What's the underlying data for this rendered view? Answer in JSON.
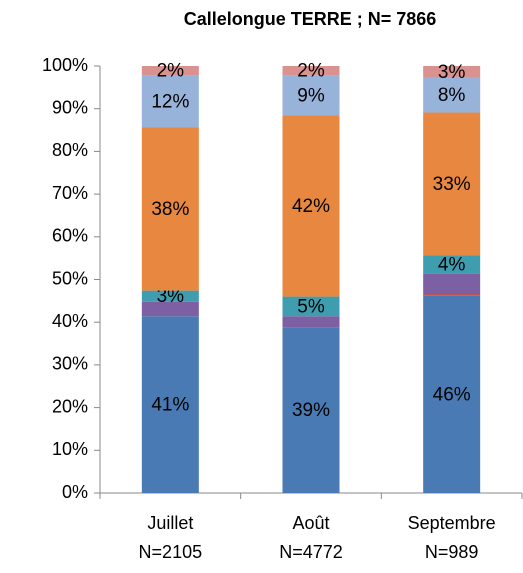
{
  "chart_data": {
    "type": "stacked_bar",
    "title": "Callelongue TERRE ; N= 7866",
    "categories": [
      "Juillet",
      "Août",
      "Septembre"
    ],
    "category_counts": [
      "N=2105",
      "N=4772",
      "N=989"
    ],
    "ylim": [
      0,
      100
    ],
    "yticks": [
      {
        "value": 0,
        "label": "0%"
      },
      {
        "value": 10,
        "label": "10%"
      },
      {
        "value": 20,
        "label": "20%"
      },
      {
        "value": 30,
        "label": "30%"
      },
      {
        "value": 40,
        "label": "40%"
      },
      {
        "value": 50,
        "label": "50%"
      },
      {
        "value": 60,
        "label": "60%"
      },
      {
        "value": 70,
        "label": "70%"
      },
      {
        "value": 80,
        "label": "80%"
      },
      {
        "value": 90,
        "label": "90%"
      },
      {
        "value": 100,
        "label": "100%"
      }
    ],
    "series": [
      {
        "color": "#4a7ab4",
        "values": [
          41.4,
          38.8,
          46.2
        ],
        "value_labels": [
          "41%",
          "39%",
          "46%"
        ]
      },
      {
        "color": "#c0504d",
        "values": [
          0,
          0,
          0.4
        ],
        "value_labels": [
          null,
          null,
          null
        ]
      },
      {
        "color": "#7d5fa3",
        "values": [
          3.4,
          2.6,
          4.7
        ],
        "value_labels": [
          null,
          null,
          null
        ]
      },
      {
        "color": "#3f9db0",
        "values": [
          2.6,
          4.6,
          4.4
        ],
        "value_labels": [
          "3%",
          "5%",
          "4%"
        ]
      },
      {
        "color": "#e8873f",
        "values": [
          38.2,
          42.4,
          33.4
        ],
        "value_labels": [
          "38%",
          "42%",
          "33%"
        ]
      },
      {
        "color": "#98b3d9",
        "values": [
          12.2,
          9.4,
          8.2
        ],
        "value_labels": [
          "12%",
          "9%",
          "8%"
        ]
      },
      {
        "color": "#d99290",
        "values": [
          2.2,
          2.2,
          2.7
        ],
        "value_labels": [
          "2%",
          "2%",
          "3%"
        ]
      }
    ]
  }
}
